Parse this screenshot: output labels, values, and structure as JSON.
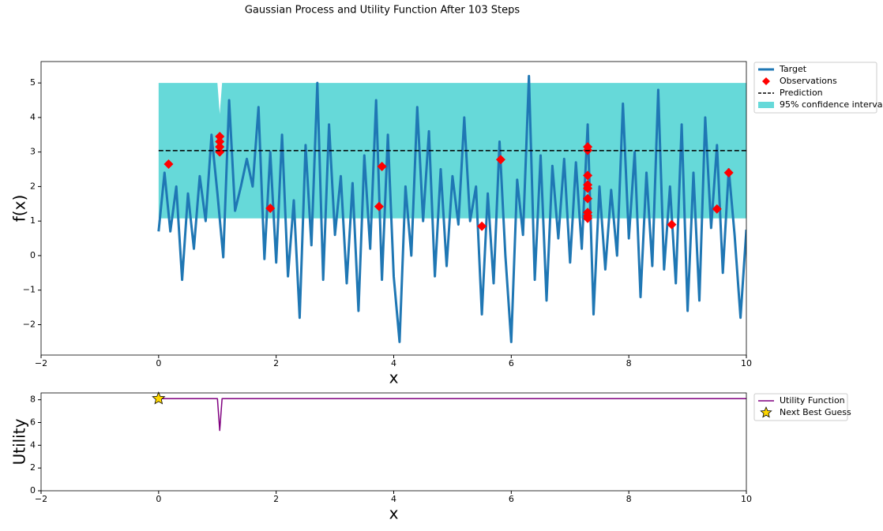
{
  "title": "Gaussian Process and Utility Function After 103 Steps",
  "chart_data": [
    {
      "type": "line",
      "xlabel": "x",
      "ylabel": "f(x)",
      "legend": "outside-right",
      "xlim": [
        -2,
        10
      ],
      "ylim": [
        -2.88,
        5.62
      ],
      "xticks": [
        {
          "value": -2,
          "label": "−2"
        },
        0,
        2,
        4,
        6,
        8,
        10
      ],
      "yticks": [
        {
          "value": -2,
          "label": "−2"
        },
        {
          "value": -1,
          "label": "−1"
        },
        0,
        1,
        2,
        3,
        4,
        5
      ],
      "series": [
        {
          "name": "Target",
          "type": "line",
          "color": "#1f77b4",
          "x": [
            0,
            0.1,
            0.2,
            0.3,
            0.4,
            0.5,
            0.6,
            0.7,
            0.8,
            0.9,
            1.0,
            1.1,
            1.2,
            1.3,
            1.4,
            1.5,
            1.6,
            1.7,
            1.8,
            1.9,
            2.0,
            2.1,
            2.2,
            2.3,
            2.4,
            2.5,
            2.6,
            2.7,
            2.8,
            2.9,
            3.0,
            3.1,
            3.2,
            3.3,
            3.4,
            3.5,
            3.6,
            3.7,
            3.8,
            3.9,
            4.0,
            4.1,
            4.2,
            4.3,
            4.4,
            4.5,
            4.6,
            4.7,
            4.8,
            4.9,
            5.0,
            5.1,
            5.2,
            5.3,
            5.4,
            5.5,
            5.6,
            5.7,
            5.8,
            5.9,
            6.0,
            6.1,
            6.2,
            6.3,
            6.4,
            6.5,
            6.6,
            6.7,
            6.8,
            6.9,
            7.0,
            7.1,
            7.2,
            7.3,
            7.4,
            7.5,
            7.6,
            7.7,
            7.8,
            7.9,
            8.0,
            8.1,
            8.2,
            8.3,
            8.4,
            8.5,
            8.6,
            8.7,
            8.8,
            8.9,
            9.0,
            9.1,
            9.2,
            9.3,
            9.4,
            9.5,
            9.6,
            9.7,
            9.8,
            9.9,
            10.0
          ],
          "values": [
            0.7,
            2.4,
            0.7,
            2.0,
            -0.7,
            1.8,
            0.2,
            2.3,
            1.0,
            3.5,
            1.8,
            -0.05,
            4.5,
            1.3,
            2.0,
            2.8,
            2.0,
            4.3,
            -0.1,
            3.0,
            -0.2,
            3.5,
            -0.6,
            1.6,
            -1.8,
            3.2,
            0.3,
            5.0,
            -0.7,
            3.8,
            0.6,
            2.3,
            -0.8,
            2.1,
            -1.6,
            2.9,
            0.2,
            4.5,
            -0.7,
            3.5,
            -0.6,
            -2.5,
            2.0,
            0.0,
            4.3,
            1.0,
            3.6,
            -0.6,
            2.5,
            -0.3,
            2.3,
            0.9,
            4.0,
            1.0,
            2.0,
            -1.7,
            1.8,
            -0.8,
            3.3,
            0.0,
            -2.5,
            2.2,
            0.6,
            5.2,
            -0.7,
            2.9,
            -1.3,
            2.6,
            0.5,
            2.8,
            -0.2,
            2.7,
            0.2,
            3.8,
            -1.7,
            2.0,
            -0.4,
            1.9,
            0.0,
            4.4,
            0.5,
            3.0,
            -1.2,
            2.4,
            -0.3,
            4.8,
            -0.4,
            2.0,
            -0.8,
            3.8,
            -1.6,
            2.4,
            -1.3,
            4.0,
            0.8,
            3.2,
            -0.5,
            2.5,
            0.6,
            -1.8,
            0.75
          ]
        },
        {
          "name": "Observations",
          "type": "scatter",
          "color": "#ff0000",
          "x": [
            0.17,
            1.04,
            1.04,
            1.04,
            1.04,
            1.9,
            3.75,
            3.8,
            5.5,
            5.82,
            7.3,
            7.3,
            7.3,
            7.3,
            7.3,
            7.3,
            7.3,
            7.3,
            7.3,
            8.73,
            9.5,
            9.7
          ],
          "values": [
            2.65,
            3.45,
            3.3,
            3.15,
            3.0,
            1.37,
            1.42,
            2.58,
            0.85,
            2.78,
            3.15,
            3.05,
            2.32,
            2.05,
            1.95,
            1.65,
            1.25,
            1.15,
            1.08,
            0.9,
            1.35,
            2.4
          ]
        },
        {
          "name": "Prediction",
          "type": "line",
          "dashed": true,
          "color": "#000000",
          "x": [
            0,
            10
          ],
          "values": [
            3.04,
            3.04
          ]
        },
        {
          "name": "95% confidence interval",
          "type": "band",
          "color": "#66d9d9",
          "x": [
            0,
            1.0,
            1.04,
            1.08,
            10
          ],
          "upper": [
            5,
            5,
            4.1,
            5,
            5
          ],
          "lower": [
            1.08,
            1.08,
            1.08,
            1.08,
            1.08
          ]
        }
      ]
    },
    {
      "type": "line",
      "xlabel": "x",
      "ylabel": "Utility",
      "legend": "outside-right",
      "xlim": [
        -2,
        10
      ],
      "ylim": [
        0,
        8.6
      ],
      "xticks": [
        {
          "value": -2,
          "label": "−2"
        },
        0,
        2,
        4,
        6,
        8,
        10
      ],
      "yticks": [
        0,
        2,
        4,
        6,
        8
      ],
      "series": [
        {
          "name": "Utility Function",
          "type": "line",
          "color": "#800080",
          "x": [
            0,
            1.0,
            1.04,
            1.08,
            10
          ],
          "values": [
            8.1,
            8.1,
            5.3,
            8.1,
            8.1
          ]
        },
        {
          "name": "Next Best Guess",
          "type": "star",
          "color": "#ffd700",
          "x": [
            0
          ],
          "values": [
            8.1
          ]
        }
      ]
    }
  ]
}
